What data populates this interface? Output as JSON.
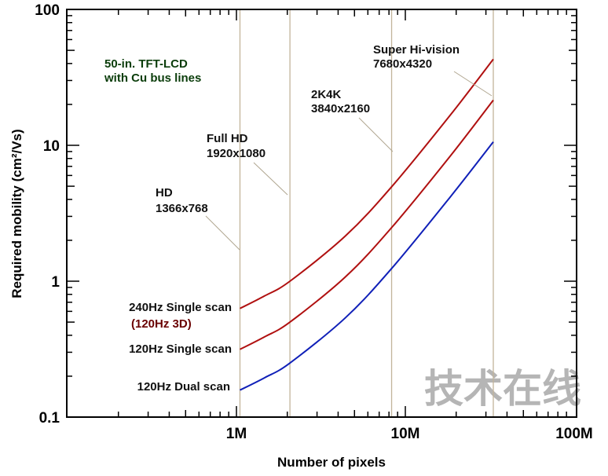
{
  "chart_data": {
    "type": "line",
    "title": "",
    "xlabel": "Number of pixels",
    "ylabel": "Required mobility (cm²/Vs)",
    "xscale": "log",
    "yscale": "log",
    "xlim": [
      100000,
      100000000
    ],
    "ylim": [
      0.1,
      100
    ],
    "x_tick_labels": [
      {
        "value": 1000000,
        "label": "1M"
      },
      {
        "value": 10000000,
        "label": "10M"
      },
      {
        "value": 100000000,
        "label": "100M"
      }
    ],
    "y_tick_labels": [
      {
        "value": 0.1,
        "label": "0.1"
      },
      {
        "value": 1,
        "label": "1"
      },
      {
        "value": 10,
        "label": "10"
      },
      {
        "value": 100,
        "label": "100"
      }
    ],
    "grid": false,
    "note": [
      "50-in. TFT-LCD",
      "with Cu bus lines"
    ],
    "colors": {
      "red": "#b01010",
      "blue": "#1020b8",
      "ref_line": "#c2b49a",
      "note": "#0b3d0b",
      "sublabel": "#6a0000"
    },
    "x": [
      1049088,
      1470000,
      2073600,
      4430000,
      8294400,
      18400000,
      33177600
    ],
    "series": [
      {
        "name": "240Hz Single scan",
        "sublabel": "(120Hz 3D)",
        "color": "#b01010",
        "values": [
          0.63,
          0.78,
          1.0,
          2.16,
          4.95,
          16.6,
          43
        ]
      },
      {
        "name": "120Hz Single scan",
        "color": "#b01010",
        "values": [
          0.315,
          0.39,
          0.5,
          1.08,
          2.48,
          8.3,
          21.5
        ]
      },
      {
        "name": "120Hz Dual scan",
        "color": "#1020b8",
        "values": [
          0.158,
          0.195,
          0.25,
          0.54,
          1.24,
          4.15,
          10.6
        ]
      }
    ],
    "reference_lines": [
      {
        "label": "HD",
        "resolution": "1366x768",
        "value": 1049088
      },
      {
        "label": "Full HD",
        "resolution": "1920x1080",
        "value": 2073600
      },
      {
        "label": "2K4K",
        "resolution": "3840x2160",
        "value": 8294400
      },
      {
        "label": "Super Hi-vision",
        "resolution": "7680x4320",
        "value": 33177600
      }
    ]
  },
  "watermark": "技术在线"
}
